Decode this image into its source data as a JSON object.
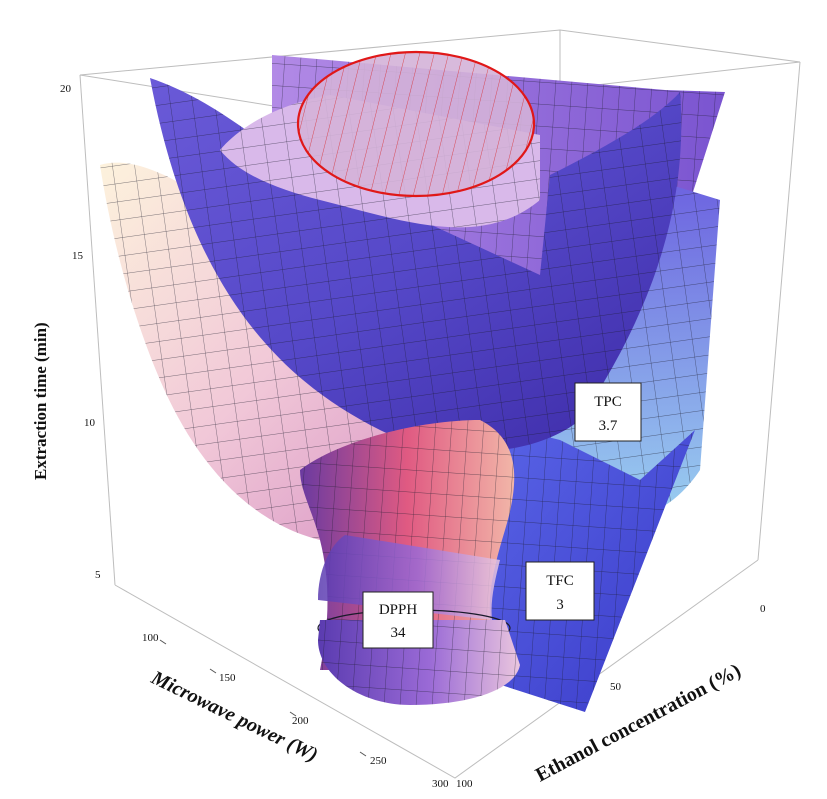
{
  "chart_data": {
    "type": "surface3d",
    "axes": {
      "x": {
        "label": "Microwave power (W)",
        "ticks": [
          "100",
          "150",
          "200",
          "250",
          "300"
        ]
      },
      "y": {
        "label": "Ethanol concentration (%)",
        "ticks": [
          "0",
          "50",
          "100"
        ]
      },
      "z": {
        "label": "Extraction time (min)",
        "ticks": [
          "5",
          "10",
          "15",
          "20"
        ]
      }
    },
    "surfaces": [
      {
        "name": "DPPH",
        "value": "34",
        "color": "#d0508a"
      },
      {
        "name": "TPC",
        "value": "3.7",
        "color": "#7a6ee8"
      },
      {
        "name": "TFC",
        "value": "3",
        "color": "#4a52d8"
      }
    ],
    "highlight": {
      "shape": "ellipse",
      "color": "#e01818"
    },
    "grid": false,
    "bounding_box": true
  }
}
